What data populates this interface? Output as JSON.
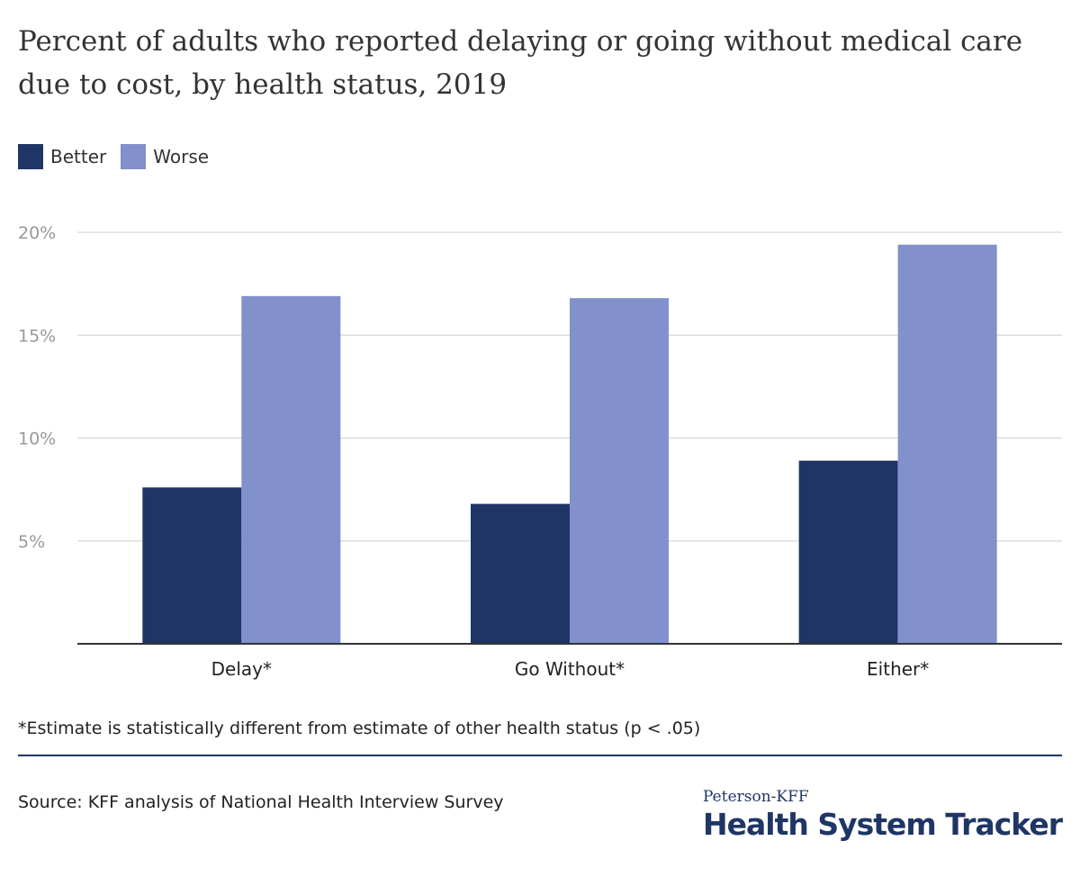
{
  "title": "Percent of adults who reported delaying or going without medical care due to cost, by health status, 2019",
  "legend": [
    {
      "label": "Better",
      "color": "#1f3566"
    },
    {
      "label": "Worse",
      "color": "#8290cb"
    }
  ],
  "chart_data": {
    "type": "bar",
    "categories": [
      "Delay*",
      "Go Without*",
      "Either*"
    ],
    "series": [
      {
        "name": "Better",
        "values": [
          7.6,
          6.8,
          8.9
        ],
        "color": "#1f3566"
      },
      {
        "name": "Worse",
        "values": [
          16.9,
          16.8,
          19.4
        ],
        "color": "#8290cb"
      }
    ],
    "yticks": [
      5,
      10,
      15,
      20
    ],
    "ytick_labels": [
      "5%",
      "10%",
      "15%",
      "20%"
    ],
    "ylim": [
      0,
      20
    ],
    "grid": true,
    "legend_position": "top-left"
  },
  "note": "*Estimate is statistically different from estimate of other health status (p < .05)",
  "source": "Source: KFF analysis of National Health Interview Survey",
  "logo": {
    "top": "Peterson-KFF",
    "bottom": "Health System Tracker"
  }
}
